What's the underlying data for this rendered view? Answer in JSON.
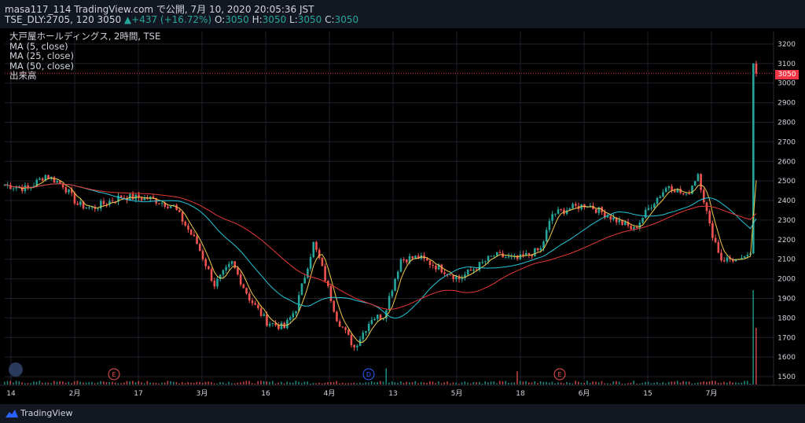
{
  "header": {
    "line1": "masa117_114 TradingView.com で公開, 7月 10, 2020 20:05:36 JST",
    "line2_symbol": "TSE_DLY:2705, 120",
    "line2_price": "3050",
    "line2_change": "+437 (+16.72%)",
    "ohlc": [
      {
        "label": "O:",
        "value": "3050"
      },
      {
        "label": "H:",
        "value": "3050"
      },
      {
        "label": "L:",
        "value": "3050"
      },
      {
        "label": "C:",
        "value": "3050"
      }
    ]
  },
  "legend": [
    "大戸屋ホールディングス, 2時間, TSE",
    "MA (5, close)",
    "MA (25, close)",
    "MA (50, close)",
    "出来高"
  ],
  "footer": {
    "brand": "TradingView"
  },
  "colors": {
    "up": "#26a69a",
    "down": "#ef5350",
    "ma5": "#f2c94c",
    "ma25": "#26c6da",
    "ma50": "#e53935",
    "grid": "#1e222d",
    "axis_text": "#d1d4dc"
  },
  "chart_data": {
    "type": "candlestick",
    "last_price_label": "3050",
    "y_ticks": [
      3200,
      3100,
      3000,
      2900,
      2800,
      2700,
      2600,
      2500,
      2400,
      2300,
      2200,
      2100,
      2000,
      1900,
      1800,
      1700,
      1600,
      1500
    ],
    "x_ticks": [
      "14",
      "2月",
      "17",
      "3月",
      "16",
      "4月",
      "13",
      "5月",
      "18",
      "6月",
      "15",
      "7月"
    ],
    "ylim": [
      1480,
      3240
    ],
    "markers": [
      {
        "label": "E",
        "color": "#ef5350",
        "near_tick": "2月"
      },
      {
        "label": "D",
        "color": "#2962ff",
        "near_tick": "4月"
      },
      {
        "label": "E",
        "color": "#ef5350",
        "near_tick": "18"
      }
    ],
    "price_anchors": [
      {
        "i": 0,
        "p": 2480
      },
      {
        "i": 8,
        "p": 2460
      },
      {
        "i": 14,
        "p": 2530
      },
      {
        "i": 20,
        "p": 2480
      },
      {
        "i": 25,
        "p": 2380
      },
      {
        "i": 30,
        "p": 2360
      },
      {
        "i": 40,
        "p": 2420
      },
      {
        "i": 50,
        "p": 2410
      },
      {
        "i": 58,
        "p": 2370
      },
      {
        "i": 66,
        "p": 2180
      },
      {
        "i": 72,
        "p": 1970
      },
      {
        "i": 78,
        "p": 2080
      },
      {
        "i": 84,
        "p": 1900
      },
      {
        "i": 90,
        "p": 1780
      },
      {
        "i": 96,
        "p": 1750
      },
      {
        "i": 100,
        "p": 1850
      },
      {
        "i": 106,
        "p": 2180
      },
      {
        "i": 108,
        "p": 2100
      },
      {
        "i": 114,
        "p": 1800
      },
      {
        "i": 120,
        "p": 1650
      },
      {
        "i": 126,
        "p": 1800
      },
      {
        "i": 130,
        "p": 1810
      },
      {
        "i": 136,
        "p": 2100
      },
      {
        "i": 142,
        "p": 2110
      },
      {
        "i": 150,
        "p": 2050
      },
      {
        "i": 156,
        "p": 2000
      },
      {
        "i": 162,
        "p": 2060
      },
      {
        "i": 168,
        "p": 2120
      },
      {
        "i": 176,
        "p": 2100
      },
      {
        "i": 184,
        "p": 2150
      },
      {
        "i": 188,
        "p": 2330
      },
      {
        "i": 194,
        "p": 2360
      },
      {
        "i": 200,
        "p": 2380
      },
      {
        "i": 210,
        "p": 2300
      },
      {
        "i": 216,
        "p": 2250
      },
      {
        "i": 222,
        "p": 2380
      },
      {
        "i": 228,
        "p": 2480
      },
      {
        "i": 234,
        "p": 2420
      },
      {
        "i": 238,
        "p": 2540
      },
      {
        "i": 242,
        "p": 2270
      },
      {
        "i": 246,
        "p": 2100
      },
      {
        "i": 252,
        "p": 2100
      },
      {
        "i": 256,
        "p": 2130
      },
      {
        "i": 257,
        "p": 3100
      },
      {
        "i": 258,
        "p": 3050
      }
    ],
    "volume_spikes": [
      {
        "i": 131,
        "v": 170
      },
      {
        "i": 176,
        "v": 140
      },
      {
        "i": 257,
        "v": 1000
      },
      {
        "i": 258,
        "v": 600
      }
    ],
    "volume_ylim": [
      0,
      1000
    ]
  }
}
